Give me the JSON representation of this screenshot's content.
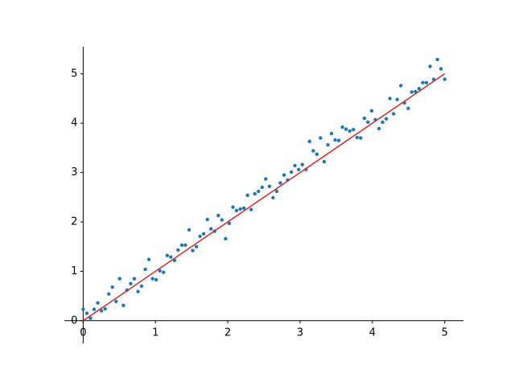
{
  "chart_data": {
    "type": "scatter",
    "xlim": [
      -0.26,
      5.26
    ],
    "ylim": [
      -0.46,
      5.55
    ],
    "xticks": [
      0,
      1,
      2,
      3,
      4,
      5
    ],
    "yticks": [
      0,
      1,
      2,
      3,
      4,
      5
    ],
    "series": [
      {
        "type": "scatter",
        "color": "#1f77b4",
        "x": [
          0,
          0.051,
          0.101,
          0.152,
          0.202,
          0.253,
          0.303,
          0.354,
          0.404,
          0.455,
          0.505,
          0.556,
          0.606,
          0.657,
          0.707,
          0.758,
          0.808,
          0.859,
          0.909,
          0.96,
          1.01,
          1.061,
          1.111,
          1.162,
          1.212,
          1.263,
          1.313,
          1.364,
          1.414,
          1.465,
          1.515,
          1.566,
          1.616,
          1.667,
          1.717,
          1.768,
          1.818,
          1.869,
          1.919,
          1.97,
          2.02,
          2.071,
          2.121,
          2.172,
          2.222,
          2.273,
          2.323,
          2.374,
          2.424,
          2.475,
          2.525,
          2.576,
          2.626,
          2.677,
          2.727,
          2.778,
          2.828,
          2.879,
          2.929,
          2.98,
          3.03,
          3.081,
          3.131,
          3.182,
          3.232,
          3.283,
          3.333,
          3.384,
          3.434,
          3.485,
          3.535,
          3.586,
          3.636,
          3.687,
          3.737,
          3.788,
          3.838,
          3.889,
          3.939,
          3.99,
          4.04,
          4.091,
          4.141,
          4.192,
          4.242,
          4.293,
          4.343,
          4.394,
          4.444,
          4.495,
          4.545,
          4.596,
          4.646,
          4.697,
          4.747,
          4.798,
          4.848,
          4.899,
          4.949,
          5
        ],
        "values": [
          0.23,
          0.15,
          0.05,
          0.23,
          0.36,
          0.2,
          0.24,
          0.54,
          0.68,
          0.39,
          0.85,
          0.31,
          0.62,
          0.75,
          0.85,
          0.59,
          0.7,
          1.04,
          1.24,
          0.85,
          0.83,
          1.01,
          0.98,
          1.32,
          1.29,
          1.22,
          1.43,
          1.53,
          1.53,
          1.84,
          1.42,
          1.5,
          1.71,
          1.76,
          2.05,
          1.86,
          1.81,
          2.13,
          2.04,
          1.66,
          1.97,
          2.3,
          2.23,
          2.26,
          2.28,
          2.54,
          2.25,
          2.57,
          2.62,
          2.7,
          2.87,
          2.72,
          2.49,
          2.62,
          2.79,
          2.95,
          2.85,
          3.01,
          3.14,
          3.06,
          3.16,
          3.06,
          3.63,
          3.44,
          3.37,
          3.7,
          3.22,
          3.56,
          3.79,
          3.66,
          3.65,
          3.92,
          3.88,
          3.84,
          3.87,
          3.71,
          3.7,
          4.1,
          4.02,
          4.25,
          4.07,
          3.89,
          4.02,
          4.09,
          4.5,
          4.19,
          4.48,
          4.76,
          4.41,
          4.3,
          4.63,
          4.64,
          4.7,
          4.82,
          4.82,
          5.15,
          4.89,
          5.29,
          5.1,
          4.89
        ]
      },
      {
        "type": "line",
        "color": "#d62728",
        "x": [
          0,
          5
        ],
        "values": [
          0,
          5
        ]
      }
    ]
  }
}
